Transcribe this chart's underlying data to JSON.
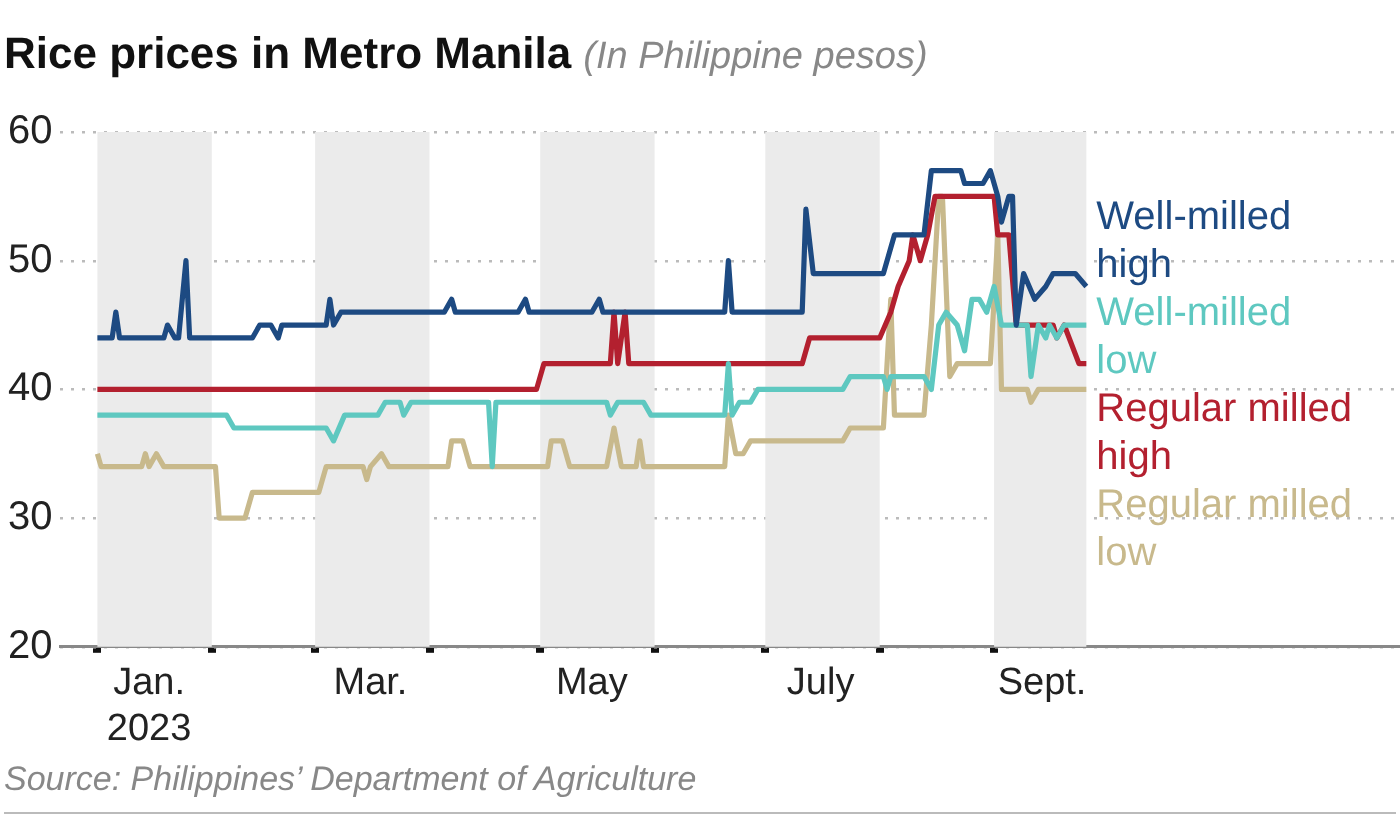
{
  "chart_data": {
    "type": "line",
    "title": "Rice prices in Metro Manila",
    "subtitle": "(In Philippine pesos)",
    "xlim": [
      "2022-12-22",
      "2023-12-20"
    ],
    "xticks": [
      {
        "value": "2023-01-01",
        "label": null
      },
      {
        "value": "2023-01-15",
        "label": "Jan. 2023"
      },
      {
        "value": "2023-02-01",
        "label": null
      },
      {
        "value": "2023-03-01",
        "label": null
      },
      {
        "value": "2023-03-16",
        "label": "Mar."
      },
      {
        "value": "2023-04-01",
        "label": null
      },
      {
        "value": "2023-05-01",
        "label": null
      },
      {
        "value": "2023-05-15",
        "label": "May"
      },
      {
        "value": "2023-06-01",
        "label": null
      },
      {
        "value": "2023-07-01",
        "label": null
      },
      {
        "value": "2023-07-16",
        "label": "July"
      },
      {
        "value": "2023-08-01",
        "label": null
      },
      {
        "value": "2023-09-01",
        "label": null
      },
      {
        "value": "2023-09-14",
        "label": "Sept."
      }
    ],
    "ylim": [
      20,
      60
    ],
    "yticks": [
      20,
      30,
      40,
      50,
      60
    ],
    "grid": "y",
    "legend": false,
    "bands": [
      {
        "axis": "x",
        "from": "2023-01-01",
        "to": "2023-02-01",
        "color": "#ebebeb"
      },
      {
        "axis": "x",
        "from": "2023-03-01",
        "to": "2023-04-01",
        "color": "#ebebeb"
      },
      {
        "axis": "x",
        "from": "2023-05-01",
        "to": "2023-06-01",
        "color": "#ebebeb"
      },
      {
        "axis": "x",
        "from": "2023-07-01",
        "to": "2023-08-01",
        "color": "#ebebeb"
      },
      {
        "axis": "x",
        "from": "2023-09-01",
        "to": "2023-09-26",
        "color": "#ebebeb"
      }
    ],
    "series": [
      {
        "name": "Well-milled high",
        "color": "#1d4a82",
        "x": [
          "2023-01-01",
          "2023-01-05",
          "2023-01-06",
          "2023-01-07",
          "2023-01-19",
          "2023-01-20",
          "2023-01-22",
          "2023-01-23",
          "2023-01-25",
          "2023-01-26",
          "2023-02-12",
          "2023-02-14",
          "2023-02-17",
          "2023-02-19",
          "2023-02-20",
          "2023-03-04",
          "2023-03-05",
          "2023-03-06",
          "2023-03-08",
          "2023-04-05",
          "2023-04-07",
          "2023-04-08",
          "2023-04-25",
          "2023-04-27",
          "2023-04-28",
          "2023-05-15",
          "2023-05-17",
          "2023-05-18",
          "2023-06-20",
          "2023-06-21",
          "2023-06-22",
          "2023-07-11",
          "2023-07-12",
          "2023-07-14",
          "2023-08-02",
          "2023-08-05",
          "2023-08-13",
          "2023-08-15",
          "2023-08-23",
          "2023-08-24",
          "2023-08-29",
          "2023-08-31",
          "2023-09-02",
          "2023-09-03",
          "2023-09-05",
          "2023-09-06",
          "2023-09-07",
          "2023-09-09",
          "2023-09-12",
          "2023-09-15",
          "2023-09-17",
          "2023-09-23",
          "2023-09-26"
        ],
        "values": [
          44,
          44,
          46,
          44,
          44,
          45,
          44,
          44,
          50,
          44,
          44,
          45,
          45,
          44,
          45,
          45,
          47,
          45,
          46,
          46,
          47,
          46,
          46,
          47,
          46,
          46,
          47,
          46,
          46,
          50,
          46,
          46,
          54,
          49,
          49,
          52,
          52,
          57,
          57,
          56,
          56,
          57,
          55,
          53,
          55,
          55,
          45,
          49,
          47,
          48,
          49,
          49,
          48
        ]
      },
      {
        "name": "Well-milled low",
        "color": "#5ec8c0",
        "x": [
          "2023-01-01",
          "2023-02-05",
          "2023-02-07",
          "2023-03-04",
          "2023-03-06",
          "2023-03-09",
          "2023-03-18",
          "2023-03-20",
          "2023-03-24",
          "2023-03-25",
          "2023-03-27",
          "2023-04-17",
          "2023-04-18",
          "2023-04-19",
          "2023-05-19",
          "2023-05-20",
          "2023-05-22",
          "2023-05-29",
          "2023-05-31",
          "2023-06-20",
          "2023-06-21",
          "2023-06-22",
          "2023-06-24",
          "2023-06-27",
          "2023-06-29",
          "2023-07-22",
          "2023-07-24",
          "2023-08-02",
          "2023-08-03",
          "2023-08-04",
          "2023-08-13",
          "2023-08-15",
          "2023-08-17",
          "2023-08-19",
          "2023-08-22",
          "2023-08-24",
          "2023-08-26",
          "2023-08-28",
          "2023-08-30",
          "2023-09-01",
          "2023-09-03",
          "2023-09-10",
          "2023-09-11",
          "2023-09-13",
          "2023-09-15",
          "2023-09-16",
          "2023-09-18",
          "2023-09-20",
          "2023-09-26"
        ],
        "values": [
          38,
          38,
          37,
          37,
          36,
          38,
          38,
          39,
          39,
          38,
          39,
          39,
          34,
          39,
          39,
          38,
          39,
          39,
          38,
          38,
          42,
          38,
          39,
          39,
          40,
          40,
          41,
          41,
          40,
          41,
          41,
          40,
          45,
          46,
          45,
          43,
          47,
          47,
          46,
          48,
          45,
          45,
          41,
          45,
          44,
          45,
          44,
          45,
          45
        ]
      },
      {
        "name": "Regular milled high",
        "color": "#b3202f",
        "x": [
          "2023-01-01",
          "2023-04-30",
          "2023-05-02",
          "2023-05-20",
          "2023-05-21",
          "2023-05-22",
          "2023-05-24",
          "2023-05-25",
          "2023-07-11",
          "2023-07-13",
          "2023-08-01",
          "2023-08-04",
          "2023-08-06",
          "2023-08-09",
          "2023-08-10",
          "2023-08-12",
          "2023-08-14",
          "2023-08-16",
          "2023-09-01",
          "2023-09-02",
          "2023-09-05",
          "2023-09-07",
          "2023-09-10",
          "2023-09-17",
          "2023-09-18",
          "2023-09-20",
          "2023-09-24",
          "2023-09-26"
        ],
        "values": [
          40,
          40,
          42,
          42,
          46,
          42,
          46,
          42,
          42,
          44,
          44,
          46,
          48,
          50,
          52,
          50,
          52,
          55,
          55,
          52,
          52,
          45,
          45,
          45,
          44,
          45,
          42,
          42
        ]
      },
      {
        "name": "Regular milled low",
        "color": "#c8b98c",
        "x": [
          "2023-01-01",
          "2023-01-02",
          "2023-01-13",
          "2023-01-14",
          "2023-01-15",
          "2023-01-17",
          "2023-01-19",
          "2023-02-02",
          "2023-02-03",
          "2023-02-10",
          "2023-02-12",
          "2023-03-02",
          "2023-03-04",
          "2023-03-14",
          "2023-03-15",
          "2023-03-16",
          "2023-03-19",
          "2023-03-21",
          "2023-04-06",
          "2023-04-07",
          "2023-04-10",
          "2023-04-12",
          "2023-05-03",
          "2023-05-04",
          "2023-05-07",
          "2023-05-09",
          "2023-05-19",
          "2023-05-21",
          "2023-05-23",
          "2023-05-27",
          "2023-05-28",
          "2023-05-29",
          "2023-06-20",
          "2023-06-21",
          "2023-06-23",
          "2023-06-25",
          "2023-06-27",
          "2023-07-22",
          "2023-07-24",
          "2023-08-02",
          "2023-08-04",
          "2023-08-05",
          "2023-08-13",
          "2023-08-15",
          "2023-08-17",
          "2023-08-18",
          "2023-08-20",
          "2023-08-22",
          "2023-08-31",
          "2023-09-02",
          "2023-09-03",
          "2023-09-10",
          "2023-09-11",
          "2023-09-13",
          "2023-09-26"
        ],
        "values": [
          35,
          34,
          34,
          35,
          34,
          35,
          34,
          34,
          30,
          30,
          32,
          32,
          34,
          34,
          33,
          34,
          35,
          34,
          34,
          36,
          36,
          34,
          34,
          36,
          36,
          34,
          34,
          37,
          34,
          34,
          36,
          34,
          34,
          38,
          35,
          35,
          36,
          36,
          37,
          37,
          47,
          38,
          38,
          45,
          55,
          55,
          41,
          42,
          42,
          52,
          40,
          40,
          39,
          40,
          40
        ]
      }
    ],
    "annotations": [
      "Source: Philippines’ Department of Agriculture"
    ]
  }
}
